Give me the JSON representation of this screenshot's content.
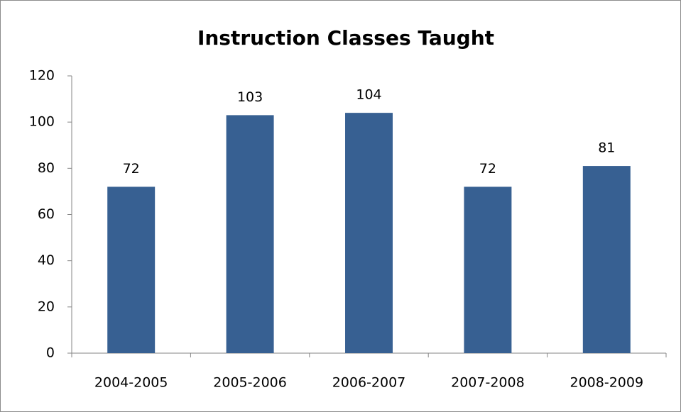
{
  "chart_data": {
    "type": "bar",
    "title": "Instruction Classes Taught",
    "categories": [
      "2004-2005",
      "2005-2006",
      "2006-2007",
      "2007-2008",
      "2008-2009"
    ],
    "values": [
      72,
      103,
      104,
      72,
      81
    ],
    "color": "#376092",
    "ylim": [
      0,
      120
    ],
    "yticks": [
      0,
      20,
      40,
      60,
      80,
      100,
      120
    ],
    "grid": false,
    "data_labels": true
  }
}
